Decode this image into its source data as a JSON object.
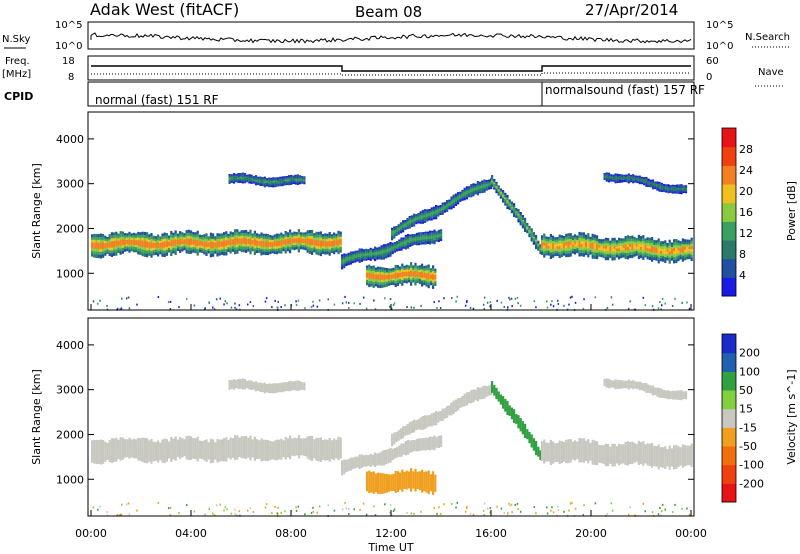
{
  "header": {
    "station": "Adak West (fitACF)",
    "beam": "Beam 08",
    "date": "27/Apr/2014"
  },
  "labels": {
    "nsky": "N.Sky",
    "nsearch": "N.Search",
    "freq_line1": "Freq.",
    "freq_line2": "[MHz]",
    "nave": "Nave",
    "cpid": "CPID",
    "nsky_ticks": [
      "10^5",
      "10^0"
    ],
    "freq_ticks": [
      "18",
      "8"
    ],
    "nave_ticks": [
      "60",
      "0"
    ]
  },
  "cpid_segments": [
    {
      "label": "normal (fast) 151 RF",
      "start_h": 0,
      "end_h": 18
    },
    {
      "label": "normalsound (fast) 157 RF",
      "start_h": 18,
      "end_h": 24
    }
  ],
  "colors": {
    "power_scale": [
      "#1a1ae6",
      "#2050a0",
      "#2a7a6a",
      "#3aa060",
      "#8cc840",
      "#f0c020",
      "#f08020",
      "#f04010",
      "#e61414"
    ],
    "velocity_scale": [
      "#1c2cc8",
      "#2060b0",
      "#30a040",
      "#80d040",
      "#c8c8c0",
      "#f0a020",
      "#f07010",
      "#f04010",
      "#e61414"
    ],
    "scatter_gray": "#c8c8c0"
  },
  "chart_data": [
    {
      "type": "heatmap",
      "name": "power",
      "ylabel": "Slant Range [km]",
      "xlim": [
        0,
        24
      ],
      "ylim": [
        180,
        4600
      ],
      "yticks": [
        "1000",
        "2000",
        "3000",
        "4000"
      ],
      "colorbar": {
        "label": "Power [dB]",
        "ticks": [
          "4",
          "8",
          "12",
          "16",
          "20",
          "24",
          "28"
        ]
      },
      "bands": [
        {
          "t0": 0.0,
          "t1": 10.0,
          "r_start": 1650,
          "r_end": 1700,
          "halfwidth": 230,
          "peak_db": 26
        },
        {
          "t0": 10.0,
          "t1": 14.0,
          "r_start": 1250,
          "r_end": 1900,
          "halfwidth": 140,
          "peak_db": 14
        },
        {
          "t0": 11.0,
          "t1": 13.8,
          "r_start": 950,
          "r_end": 950,
          "halfwidth": 220,
          "peak_db": 26
        },
        {
          "t0": 12.0,
          "t1": 16.0,
          "r_start": 1900,
          "r_end": 3050,
          "halfwidth": 130,
          "peak_db": 14
        },
        {
          "t0": 16.0,
          "t1": 18.0,
          "r_start": 3100,
          "r_end": 1500,
          "halfwidth": 130,
          "peak_db": 16
        },
        {
          "t0": 18.0,
          "t1": 24.0,
          "r_start": 1650,
          "r_end": 1500,
          "halfwidth": 230,
          "peak_db": 24
        },
        {
          "t0": 5.5,
          "t1": 8.5,
          "r_start": 3100,
          "r_end": 3050,
          "halfwidth": 100,
          "peak_db": 12
        },
        {
          "t0": 20.5,
          "t1": 23.8,
          "r_start": 3200,
          "r_end": 2850,
          "halfwidth": 90,
          "peak_db": 10
        }
      ]
    },
    {
      "type": "heatmap",
      "name": "velocity",
      "ylabel": "Slant Range [km]",
      "xlabel": "Time UT",
      "xlim": [
        0,
        24
      ],
      "ylim": [
        180,
        4600
      ],
      "xticks": [
        "00:00",
        "04:00",
        "08:00",
        "12:00",
        "16:00",
        "20:00",
        "00:00"
      ],
      "yticks": [
        "1000",
        "2000",
        "3000",
        "4000"
      ],
      "colorbar": {
        "label": "Velocity [m s^-1]",
        "ticks": [
          "200",
          "100",
          "50",
          "15",
          "-15",
          "-50",
          "-100",
          "-200"
        ]
      },
      "bands": [
        {
          "t0": 0.0,
          "t1": 10.0,
          "r_start": 1650,
          "r_end": 1700,
          "halfwidth": 230,
          "vel": 0
        },
        {
          "t0": 10.0,
          "t1": 14.0,
          "r_start": 1250,
          "r_end": 1900,
          "halfwidth": 140,
          "vel": 0
        },
        {
          "t0": 11.0,
          "t1": 13.8,
          "r_start": 950,
          "r_end": 950,
          "halfwidth": 220,
          "vel": -60
        },
        {
          "t0": 12.0,
          "t1": 16.0,
          "r_start": 1900,
          "r_end": 3050,
          "halfwidth": 130,
          "vel": 0
        },
        {
          "t0": 16.0,
          "t1": 18.0,
          "r_start": 3100,
          "r_end": 1500,
          "halfwidth": 130,
          "vel": 40
        },
        {
          "t0": 18.0,
          "t1": 24.0,
          "r_start": 1650,
          "r_end": 1500,
          "halfwidth": 230,
          "vel": 0
        },
        {
          "t0": 5.5,
          "t1": 8.5,
          "r_start": 3100,
          "r_end": 3050,
          "halfwidth": 100,
          "vel": 0
        },
        {
          "t0": 20.5,
          "t1": 23.8,
          "r_start": 3200,
          "r_end": 2850,
          "halfwidth": 90,
          "vel": 0
        }
      ]
    }
  ]
}
